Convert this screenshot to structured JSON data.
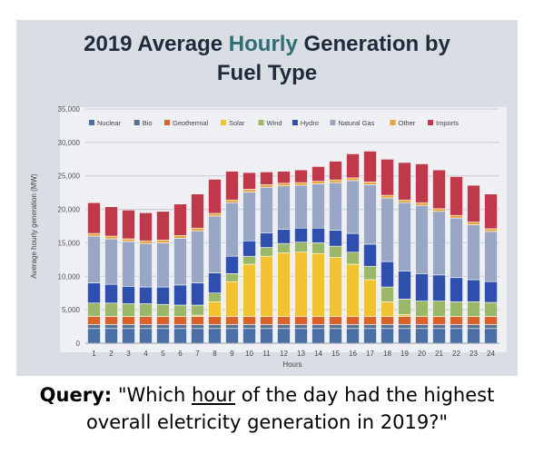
{
  "chart_data": {
    "type": "bar",
    "stacked": true,
    "title": "2019 Average Hourly Generation by Fuel Type",
    "title_lines": [
      "2019 Average Hourly Generation by",
      "Fuel Type"
    ],
    "title_colored_word": "Hourly",
    "xlabel": "Hours",
    "ylabel": "Average hourly generation (MW)",
    "ylim": [
      0,
      35000
    ],
    "yticks": [
      0,
      5000,
      10000,
      15000,
      20000,
      25000,
      30000,
      35000
    ],
    "ytick_labels": [
      "0",
      "5,000",
      "10,000",
      "15,000",
      "20,000",
      "25,000",
      "30,000",
      "35,000"
    ],
    "grid": true,
    "legend_position": "top",
    "categories": [
      "1",
      "2",
      "3",
      "4",
      "5",
      "6",
      "7",
      "8",
      "9",
      "10",
      "11",
      "12",
      "13",
      "14",
      "15",
      "16",
      "17",
      "18",
      "19",
      "20",
      "21",
      "22",
      "23",
      "24"
    ],
    "series": [
      {
        "name": "Nuclear",
        "color": "#4a6fa5",
        "values": [
          2200,
          2200,
          2200,
          2200,
          2200,
          2200,
          2200,
          2200,
          2200,
          2200,
          2200,
          2200,
          2200,
          2200,
          2200,
          2200,
          2200,
          2200,
          2200,
          2200,
          2200,
          2200,
          2200,
          2200
        ]
      },
      {
        "name": "Bio",
        "color": "#5b6f8e",
        "values": [
          600,
          600,
          600,
          600,
          600,
          600,
          600,
          600,
          600,
          600,
          600,
          600,
          600,
          600,
          600,
          600,
          600,
          600,
          600,
          600,
          600,
          600,
          600,
          600
        ]
      },
      {
        "name": "Geothermal",
        "color": "#d8622a",
        "values": [
          1200,
          1200,
          1200,
          1200,
          1200,
          1200,
          1200,
          1200,
          1200,
          1200,
          1200,
          1200,
          1200,
          1200,
          1200,
          1200,
          1200,
          1200,
          1200,
          1200,
          1200,
          1200,
          1200,
          1200
        ]
      },
      {
        "name": "Solar",
        "color": "#f2c230",
        "values": [
          0,
          0,
          0,
          0,
          0,
          0,
          200,
          2200,
          5200,
          7800,
          9000,
          9500,
          9600,
          9400,
          8800,
          7800,
          5500,
          2200,
          300,
          0,
          0,
          0,
          0,
          0
        ]
      },
      {
        "name": "Wind",
        "color": "#9bb86a",
        "values": [
          2000,
          2000,
          1900,
          1900,
          1800,
          1700,
          1500,
          1300,
          1200,
          1200,
          1300,
          1400,
          1500,
          1600,
          1700,
          1800,
          2000,
          2200,
          2300,
          2300,
          2300,
          2200,
          2200,
          2100
        ]
      },
      {
        "name": "Hydro",
        "color": "#2f4fae",
        "values": [
          3000,
          2800,
          2600,
          2500,
          2600,
          3000,
          3300,
          3000,
          2600,
          2300,
          2200,
          2100,
          2100,
          2200,
          2400,
          2800,
          3300,
          3800,
          4200,
          4100,
          3900,
          3600,
          3300,
          3100
        ]
      },
      {
        "name": "Natural Gas",
        "color": "#9aa7c4",
        "values": [
          7000,
          6800,
          6700,
          6500,
          6600,
          7000,
          7800,
          8500,
          8000,
          7300,
          6800,
          6500,
          6400,
          6600,
          7100,
          7900,
          8900,
          9500,
          10200,
          10200,
          9500,
          8900,
          8200,
          7500
        ]
      },
      {
        "name": "Other",
        "color": "#e8a33a",
        "values": [
          400,
          400,
          400,
          400,
          400,
          400,
          400,
          400,
          400,
          400,
          400,
          400,
          400,
          400,
          400,
          400,
          400,
          400,
          400,
          400,
          400,
          400,
          400,
          400
        ]
      },
      {
        "name": "Imports",
        "color": "#c0394b",
        "values": [
          4600,
          4400,
          4300,
          4200,
          4300,
          4700,
          5100,
          5100,
          4300,
          2500,
          1900,
          1800,
          1900,
          2200,
          2800,
          3600,
          4600,
          5400,
          5600,
          5800,
          5800,
          5800,
          5500,
          5200
        ]
      }
    ]
  },
  "caption": {
    "label": "Query:",
    "text_before": "\"Which ",
    "highlight": "hour",
    "text_after": " of the day had the highest",
    "line2": "overall eletricity generation in 2019?\""
  }
}
